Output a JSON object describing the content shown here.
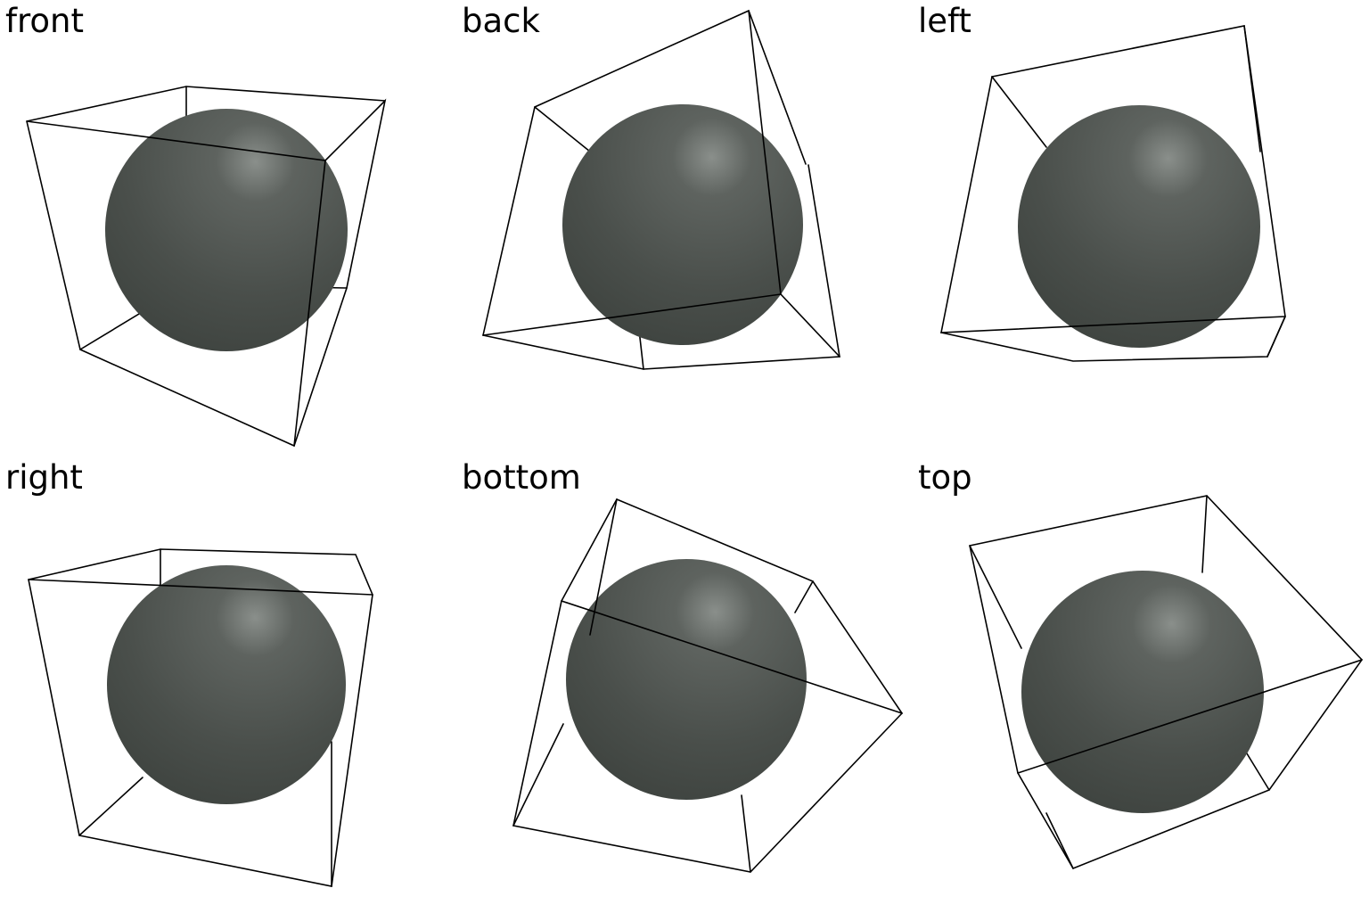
{
  "views": [
    {
      "id": "front",
      "label": "front"
    },
    {
      "id": "back",
      "label": "back"
    },
    {
      "id": "left",
      "label": "left"
    },
    {
      "id": "right",
      "label": "right"
    },
    {
      "id": "bottom",
      "label": "bottom"
    },
    {
      "id": "top",
      "label": "top"
    }
  ],
  "colors": {
    "background": "#ffffff",
    "sphere_base": "#4a4f4b",
    "sphere_highlight": "#8a8f8b",
    "sphere_shadow": "#3c413d",
    "wireframe": "#000000"
  },
  "icons": {
    "sphere": "shaded-sphere",
    "box": "wireframe-bounding-box"
  }
}
